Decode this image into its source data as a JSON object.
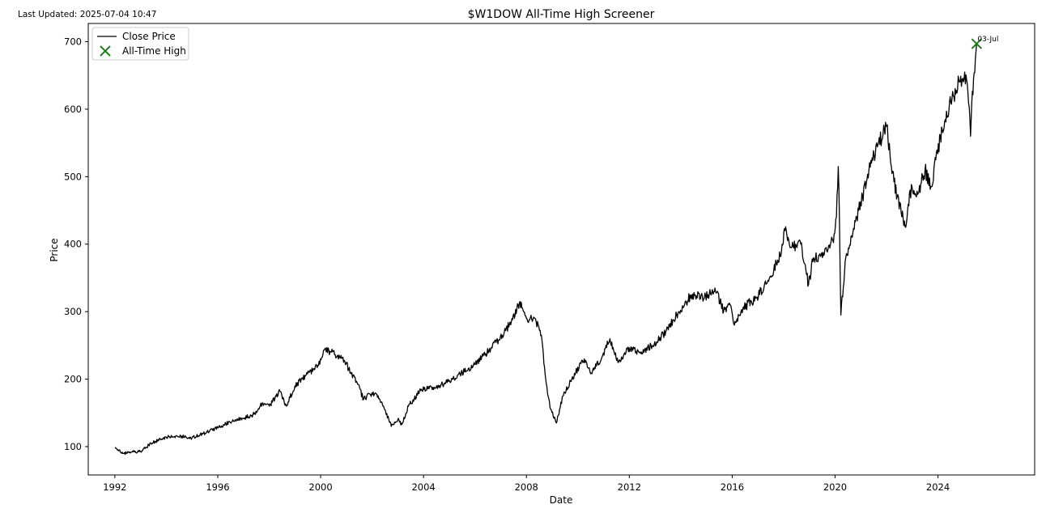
{
  "header": {
    "last_updated": "Last Updated: 2025-07-04 10:47"
  },
  "chart_data": {
    "type": "line",
    "title": "$W1DOW All-Time High Screener",
    "xlabel": "Date",
    "ylabel": "Price",
    "xlim": [
      "1990-12-19",
      "2027-10-05"
    ],
    "ylim": [
      58,
      727
    ],
    "x_ticks": [
      "1992",
      "1996",
      "2000",
      "2004",
      "2008",
      "2012",
      "2016",
      "2020",
      "2024"
    ],
    "y_ticks": [
      100,
      200,
      300,
      400,
      500,
      600,
      700
    ],
    "grid": false,
    "legend_position": "top-left",
    "colors": {
      "line": "#000000",
      "ath_marker": "#1a7f1a",
      "axes": "#000000"
    },
    "series": [
      {
        "name": "Close Price",
        "kind": "line",
        "points": [
          [
            "1992-01-02",
            99
          ],
          [
            "1992-03-01",
            95
          ],
          [
            "1992-05-01",
            90
          ],
          [
            "1992-09-01",
            92
          ],
          [
            "1993-01-01",
            93
          ],
          [
            "1993-06-01",
            105
          ],
          [
            "1994-01-01",
            114
          ],
          [
            "1994-06-01",
            116
          ],
          [
            "1995-01-01",
            113
          ],
          [
            "1995-06-01",
            119
          ],
          [
            "1996-01-01",
            128
          ],
          [
            "1996-06-01",
            136
          ],
          [
            "1997-01-01",
            142
          ],
          [
            "1997-06-01",
            148
          ],
          [
            "1997-10-01",
            165
          ],
          [
            "1998-01-01",
            160
          ],
          [
            "1998-06-01",
            182
          ],
          [
            "1998-09-01",
            160
          ],
          [
            "1999-01-01",
            190
          ],
          [
            "1999-06-01",
            205
          ],
          [
            "1999-12-01",
            220
          ],
          [
            "2000-03-01",
            245
          ],
          [
            "2000-06-01",
            240
          ],
          [
            "2000-12-01",
            228
          ],
          [
            "2001-03-01",
            210
          ],
          [
            "2001-06-01",
            195
          ],
          [
            "2001-09-01",
            170
          ],
          [
            "2001-12-01",
            178
          ],
          [
            "2002-03-01",
            178
          ],
          [
            "2002-07-01",
            155
          ],
          [
            "2002-10-01",
            130
          ],
          [
            "2003-01-01",
            140
          ],
          [
            "2003-03-01",
            133
          ],
          [
            "2003-06-01",
            160
          ],
          [
            "2003-12-01",
            185
          ],
          [
            "2004-06-01",
            188
          ],
          [
            "2004-12-01",
            195
          ],
          [
            "2005-06-01",
            208
          ],
          [
            "2005-12-01",
            218
          ],
          [
            "2006-06-01",
            238
          ],
          [
            "2006-12-01",
            258
          ],
          [
            "2007-06-01",
            285
          ],
          [
            "2007-10-01",
            315
          ],
          [
            "2008-01-01",
            290
          ],
          [
            "2008-05-01",
            290
          ],
          [
            "2008-08-01",
            265
          ],
          [
            "2008-10-01",
            200
          ],
          [
            "2008-12-01",
            158
          ],
          [
            "2009-03-01",
            135
          ],
          [
            "2009-06-01",
            175
          ],
          [
            "2009-12-01",
            210
          ],
          [
            "2010-04-01",
            230
          ],
          [
            "2010-07-01",
            208
          ],
          [
            "2010-12-01",
            230
          ],
          [
            "2011-04-01",
            260
          ],
          [
            "2011-08-01",
            225
          ],
          [
            "2011-12-01",
            245
          ],
          [
            "2012-06-01",
            240
          ],
          [
            "2012-12-01",
            250
          ],
          [
            "2013-06-01",
            270
          ],
          [
            "2013-12-01",
            300
          ],
          [
            "2014-06-01",
            325
          ],
          [
            "2014-12-01",
            320
          ],
          [
            "2015-05-01",
            335
          ],
          [
            "2015-09-01",
            300
          ],
          [
            "2015-12-01",
            310
          ],
          [
            "2016-02-01",
            280
          ],
          [
            "2016-06-01",
            305
          ],
          [
            "2016-12-01",
            320
          ],
          [
            "2017-06-01",
            345
          ],
          [
            "2017-12-01",
            390
          ],
          [
            "2018-01-20",
            420
          ],
          [
            "2018-04-01",
            395
          ],
          [
            "2018-09-01",
            400
          ],
          [
            "2018-12-20",
            340
          ],
          [
            "2019-03-01",
            380
          ],
          [
            "2019-08-01",
            385
          ],
          [
            "2019-12-01",
            405
          ],
          [
            "2020-01-20",
            440
          ],
          [
            "2020-02-15",
            515
          ],
          [
            "2020-03-01",
            450
          ],
          [
            "2020-03-23",
            295
          ],
          [
            "2020-06-01",
            380
          ],
          [
            "2020-09-01",
            410
          ],
          [
            "2020-12-01",
            450
          ],
          [
            "2021-06-01",
            520
          ],
          [
            "2021-12-01",
            570
          ],
          [
            "2022-01-03",
            575
          ],
          [
            "2022-03-01",
            520
          ],
          [
            "2022-06-01",
            470
          ],
          [
            "2022-09-30",
            425
          ],
          [
            "2022-12-01",
            480
          ],
          [
            "2023-03-01",
            470
          ],
          [
            "2023-07-01",
            510
          ],
          [
            "2023-10-01",
            485
          ],
          [
            "2023-12-01",
            525
          ],
          [
            "2024-03-01",
            570
          ],
          [
            "2024-07-01",
            610
          ],
          [
            "2024-11-01",
            640
          ],
          [
            "2025-01-15",
            655
          ],
          [
            "2025-03-01",
            625
          ],
          [
            "2025-04-08",
            560
          ],
          [
            "2025-04-25",
            610
          ],
          [
            "2025-05-20",
            645
          ],
          [
            "2025-06-15",
            675
          ],
          [
            "2025-07-03",
            697
          ]
        ]
      },
      {
        "name": "All-Time High",
        "kind": "marker",
        "points": [
          [
            "2025-07-03",
            697
          ]
        ]
      }
    ],
    "annotations": [
      {
        "text": "03-Jul",
        "x": "2025-07-03",
        "y": 697
      }
    ]
  }
}
